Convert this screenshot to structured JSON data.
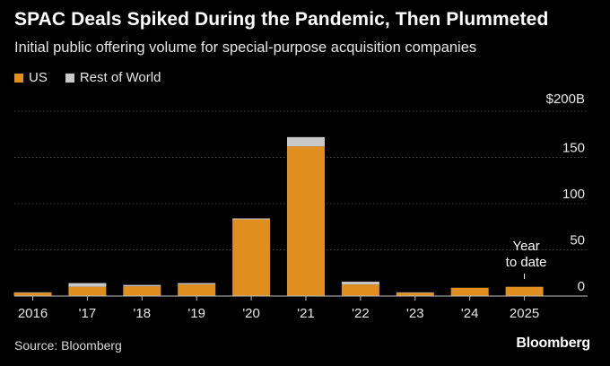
{
  "chart_data": {
    "type": "bar",
    "stacked": true,
    "title": "SPAC Deals Spiked During the Pandemic, Then Plummeted",
    "subtitle": "Initial public offering volume for special-purpose acquisition companies",
    "categories": [
      "2016",
      "'17",
      "'18",
      "'19",
      "'20",
      "'21",
      "'22",
      "'23",
      "'24",
      "'25"
    ],
    "x_tick_labels": [
      "2016",
      "'17",
      "'18",
      "'19",
      "'20",
      "'21",
      "'22",
      "'23",
      "'24",
      "2025"
    ],
    "series": [
      {
        "name": "US",
        "color": "#e08f1f",
        "values": [
          3.5,
          10,
          10.5,
          12.5,
          83,
          162,
          12.5,
          3.5,
          9,
          10
        ]
      },
      {
        "name": "Rest of World",
        "color": "#c8c8c8",
        "values": [
          0.5,
          4,
          1.5,
          1.5,
          1,
          10,
          3,
          0.5,
          0,
          0
        ]
      }
    ],
    "ylim": [
      0,
      200
    ],
    "y_ticks": [
      0,
      50,
      100,
      150,
      200
    ],
    "y_tick_labels": [
      "0",
      "50",
      "100",
      "150",
      "$200B"
    ],
    "annotation": {
      "category": "'25",
      "text_line1": "Year",
      "text_line2": "to date"
    },
    "grid": true,
    "legend": "top-left"
  },
  "footer": {
    "source": "Source: Bloomberg",
    "brand": "Bloomberg"
  }
}
